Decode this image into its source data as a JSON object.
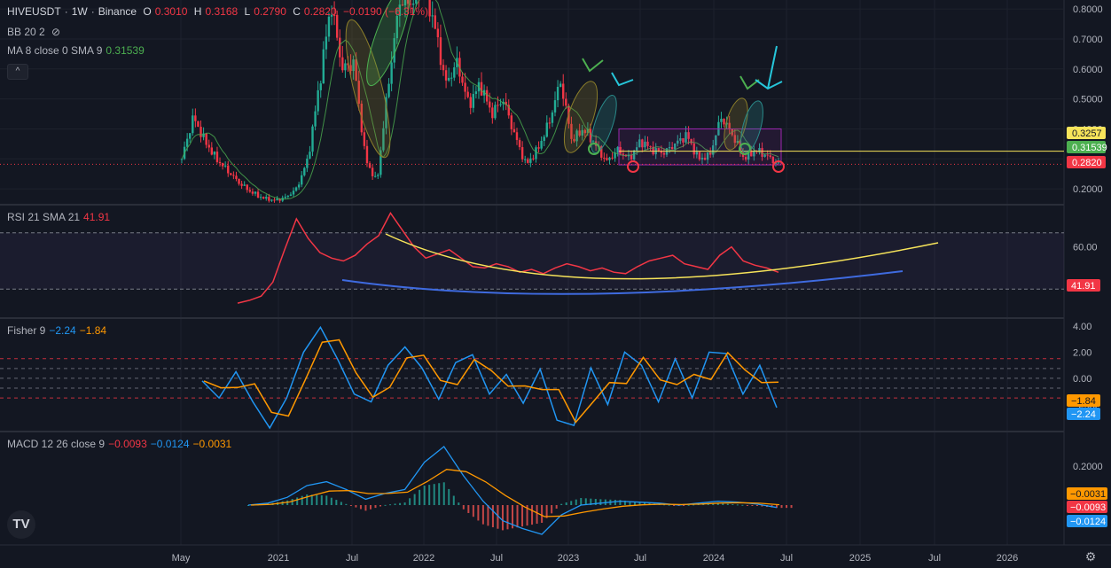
{
  "header": {
    "symbol": "HIVEUSDT",
    "interval": "1W",
    "exchange": "Binance",
    "o_label": "O",
    "o": "0.3010",
    "h_label": "H",
    "h": "0.3168",
    "l_label": "L",
    "l": "0.2790",
    "c_label": "C",
    "c": "0.2820",
    "change": "−0.0190 (−6.31%)"
  },
  "indicators": {
    "bb": "BB 20 2",
    "ma": "MA 8 close 0 SMA 9",
    "ma_value": "0.31539",
    "rsi": "RSI 21 SMA 21",
    "rsi_value": "41.91",
    "fisher": "Fisher 9",
    "fisher_v1": "−2.24",
    "fisher_v2": "−1.84",
    "macd": "MACD 12 26 close 9",
    "macd_v1": "−0.0093",
    "macd_v2": "−0.0124",
    "macd_v3": "−0.0031"
  },
  "ui": {
    "collapse_label": "^",
    "logo_text": "TV",
    "settings_icon": "gear-icon",
    "eye_icon": "eye-off-icon"
  },
  "colors": {
    "bg": "#131722",
    "grid": "#1e222d",
    "up": "#22ab94",
    "down": "#f23645",
    "ma": "#4caf50",
    "rsi": "#f23645",
    "fisher1": "#2196f3",
    "fisher2": "#ff9800",
    "macd": "#2196f3",
    "signal": "#ff9800",
    "trend_yellow": "#f7e45a",
    "trend_blue": "#3f6be0",
    "box": "#9c27b0",
    "hline": "#f7e45a"
  },
  "chart_data": [
    {
      "type": "candlestick",
      "title": "HIVEUSDT · 1W · Binance",
      "x_ticks": [
        "May",
        "2021",
        "Jul",
        "2022",
        "Jul",
        "2023",
        "Jul",
        "2024",
        "Jul",
        "2025",
        "Jul",
        "2026"
      ],
      "y_ticks": [
        "0.8000",
        "0.7000",
        "0.6000",
        "0.5000",
        "0.4000",
        "0.3000",
        "0.2000"
      ],
      "ylim": [
        0.15,
        0.83
      ],
      "price_labels": [
        {
          "value": "0.3257",
          "color": "#f7e45a"
        },
        {
          "value": "0.31539",
          "color": "#4caf50"
        },
        {
          "value": "0.2820",
          "color": "#f23645"
        }
      ],
      "close_series": [
        0.3,
        0.44,
        0.36,
        0.3,
        0.26,
        0.22,
        0.19,
        0.17,
        0.16,
        0.17,
        0.2,
        0.3,
        0.55,
        0.82,
        0.6,
        0.62,
        0.3,
        0.22,
        0.55,
        0.83,
        0.82,
        0.9,
        0.75,
        0.55,
        0.62,
        0.48,
        0.55,
        0.45,
        0.5,
        0.38,
        0.28,
        0.33,
        0.42,
        0.56,
        0.36,
        0.4,
        0.35,
        0.29,
        0.33,
        0.3,
        0.36,
        0.33,
        0.32,
        0.35,
        0.38,
        0.3,
        0.31,
        0.44,
        0.38,
        0.3,
        0.33,
        0.31,
        0.28
      ],
      "annotations": [
        "horizontal line 0.3257",
        "range box ~0.28-0.40 (2023-2024)",
        "ellipses and arrows marking peaks",
        "circles marking lows"
      ]
    },
    {
      "type": "line",
      "title": "RSI 21 SMA 21",
      "y_ticks": [
        "60.00"
      ],
      "last_value": "41.91",
      "series": [
        {
          "values": [
            20,
            22,
            25,
            35,
            58,
            80,
            66,
            56,
            52,
            50,
            54,
            62,
            68,
            84,
            72,
            60,
            52,
            55,
            58,
            52,
            46,
            45,
            48,
            46,
            42,
            44,
            41,
            45,
            48,
            46,
            43,
            45,
            42,
            41,
            46,
            50,
            52,
            54,
            48,
            46,
            44,
            54,
            60,
            50,
            47,
            45,
            41.91
          ]
        }
      ],
      "trendlines": [
        "yellow curve",
        "blue curve"
      ]
    },
    {
      "type": "line",
      "title": "Fisher 9",
      "y_ticks": [
        "4.00",
        "2.00",
        "0.00",
        "−2.00"
      ],
      "series": [
        {
          "name": "Fisher",
          "color": "#2196f3",
          "last": "−2.24"
        },
        {
          "name": "Trigger",
          "color": "#ff9800",
          "last": "−1.84"
        }
      ],
      "values": [
        -0.2,
        -1.5,
        0.5,
        -1.8,
        -3.8,
        -1.5,
        2.0,
        3.9,
        1.5,
        -1.2,
        -1.8,
        1.0,
        2.4,
        0.8,
        -1.6,
        1.2,
        1.8,
        -1.2,
        0.3,
        -1.9,
        0.7,
        -3.2,
        -3.6,
        0.8,
        -2.0,
        2.0,
        1.0,
        -1.8,
        1.5,
        -1.5,
        2.0,
        1.9,
        -1.2,
        1.0,
        -2.24
      ]
    },
    {
      "type": "bar",
      "title": "MACD 12 26 close 9",
      "y_ticks": [
        "0.2000"
      ],
      "series": [
        {
          "name": "MACD",
          "color": "#2196f3",
          "last": "−0.0124"
        },
        {
          "name": "Signal",
          "color": "#ff9800",
          "last": "−0.0093"
        },
        {
          "name": "Histogram",
          "last": "−0.0031"
        }
      ],
      "macd_values": [
        0,
        0.01,
        0.04,
        0.1,
        0.12,
        0.08,
        0.03,
        0.06,
        0.08,
        0.22,
        0.3,
        0.15,
        0.02,
        -0.08,
        -0.12,
        -0.15,
        -0.05,
        0.0,
        0.01,
        0.02,
        0.015,
        0.01,
        0.0,
        0.01,
        0.02,
        0.015,
        0.005,
        -0.0124
      ]
    }
  ]
}
